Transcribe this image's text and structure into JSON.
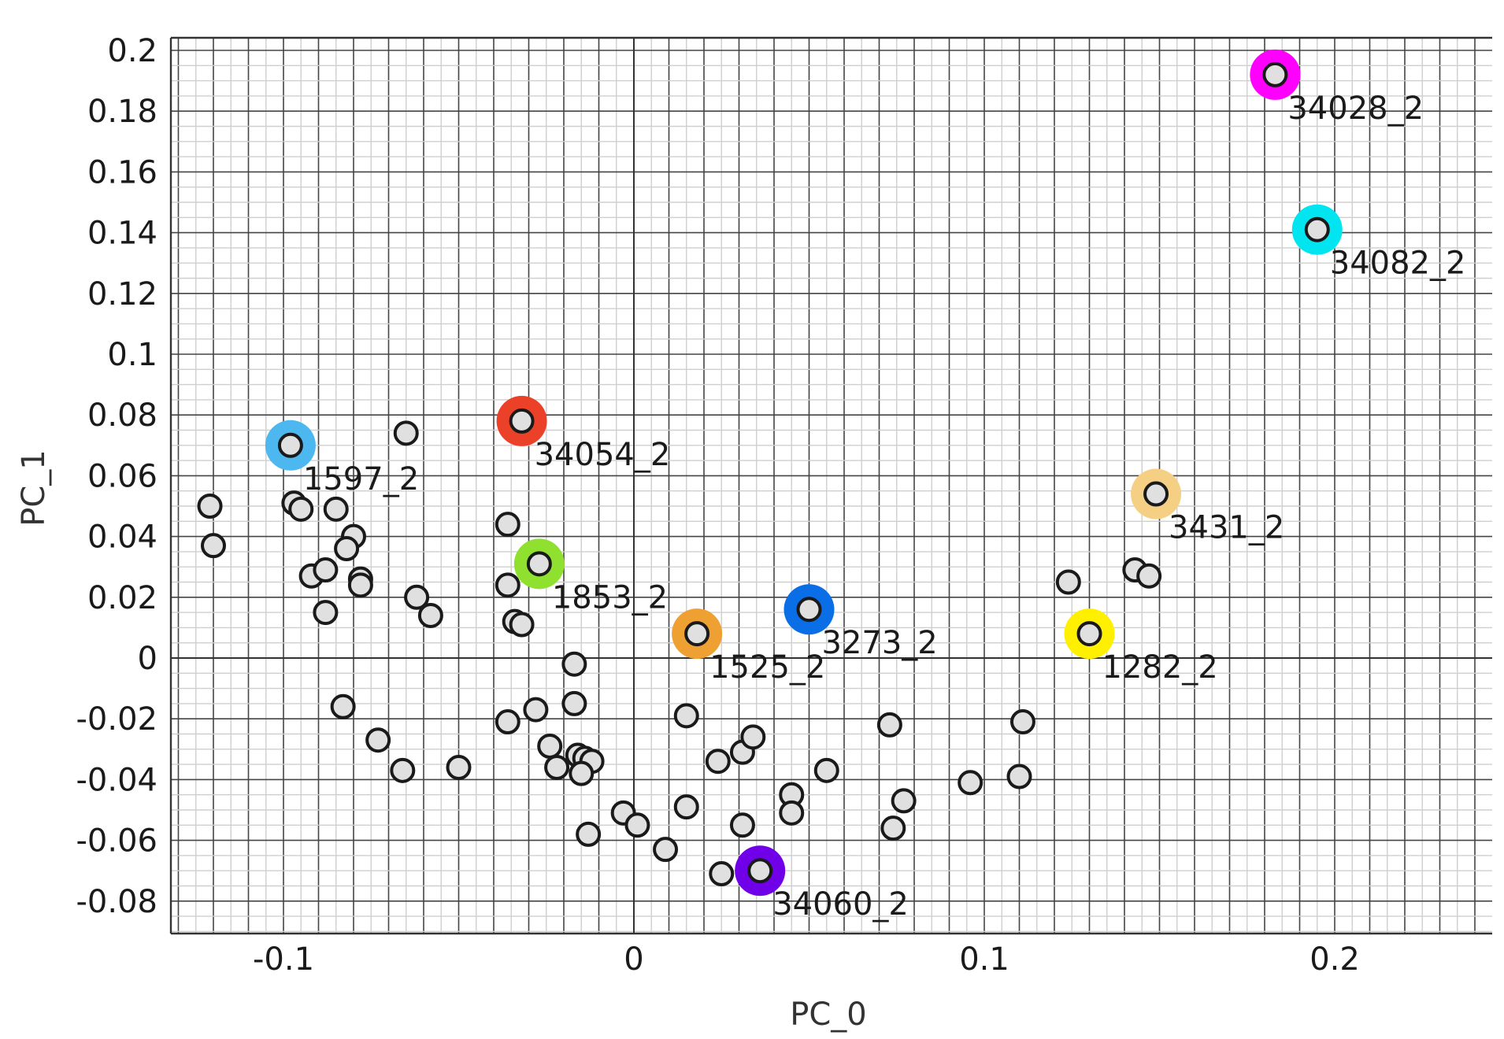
{
  "chart_data": {
    "type": "scatter",
    "title": "",
    "xlabel": "PC_0",
    "ylabel": "PC_1",
    "xlim": [
      -0.13,
      0.245
    ],
    "ylim": [
      -0.09,
      0.203
    ],
    "x_ticks": [
      -0.1,
      0,
      0.1,
      0.2
    ],
    "x_tick_labels": [
      "-0.1",
      "0",
      "0.1",
      "0.2"
    ],
    "y_ticks": [
      -0.08,
      -0.06,
      -0.04,
      -0.02,
      0,
      0.02,
      0.04,
      0.06,
      0.08,
      0.1,
      0.12,
      0.14,
      0.16,
      0.18,
      0.2
    ],
    "y_tick_labels": [
      "-0.08",
      "-0.06",
      "-0.04",
      "-0.02",
      "0",
      "0.02",
      "0.04",
      "0.06",
      "0.08",
      "0.1",
      "0.12",
      "0.14",
      "0.16",
      "0.18",
      "0.2"
    ],
    "grid": true,
    "highlighted_points": [
      {
        "label": "34028_2",
        "x": 0.183,
        "y": 0.192,
        "color": "#ff00ff"
      },
      {
        "label": "34082_2",
        "x": 0.195,
        "y": 0.141,
        "color": "#00e5f0"
      },
      {
        "label": "34054_2",
        "x": -0.032,
        "y": 0.078,
        "color": "#ec4129"
      },
      {
        "label": "1597_2",
        "x": -0.098,
        "y": 0.07,
        "color": "#4db8f0"
      },
      {
        "label": "3431_2",
        "x": 0.149,
        "y": 0.054,
        "color": "#f5d084"
      },
      {
        "label": "1853_2",
        "x": -0.027,
        "y": 0.031,
        "color": "#90e030"
      },
      {
        "label": "3273_2",
        "x": 0.05,
        "y": 0.016,
        "color": "#0a6ee6"
      },
      {
        "label": "1525_2",
        "x": 0.018,
        "y": 0.008,
        "color": "#eea132"
      },
      {
        "label": "1282_2",
        "x": 0.13,
        "y": 0.008,
        "color": "#fff000"
      },
      {
        "label": "34060_2",
        "x": 0.036,
        "y": -0.07,
        "color": "#7000e8"
      }
    ],
    "points": [
      {
        "x": -0.121,
        "y": 0.05
      },
      {
        "x": -0.12,
        "y": 0.037
      },
      {
        "x": -0.097,
        "y": 0.051
      },
      {
        "x": -0.095,
        "y": 0.049
      },
      {
        "x": -0.085,
        "y": 0.049
      },
      {
        "x": -0.08,
        "y": 0.04
      },
      {
        "x": -0.082,
        "y": 0.036
      },
      {
        "x": -0.092,
        "y": 0.027
      },
      {
        "x": -0.088,
        "y": 0.029
      },
      {
        "x": -0.078,
        "y": 0.026
      },
      {
        "x": -0.078,
        "y": 0.024
      },
      {
        "x": -0.088,
        "y": 0.015
      },
      {
        "x": -0.065,
        "y": 0.074
      },
      {
        "x": -0.062,
        "y": 0.02
      },
      {
        "x": -0.058,
        "y": 0.014
      },
      {
        "x": -0.036,
        "y": 0.044
      },
      {
        "x": -0.036,
        "y": 0.024
      },
      {
        "x": -0.034,
        "y": 0.012
      },
      {
        "x": -0.032,
        "y": 0.011
      },
      {
        "x": -0.017,
        "y": -0.002
      },
      {
        "x": -0.083,
        "y": -0.016
      },
      {
        "x": -0.073,
        "y": -0.027
      },
      {
        "x": -0.066,
        "y": -0.037
      },
      {
        "x": -0.05,
        "y": -0.036
      },
      {
        "x": -0.036,
        "y": -0.021
      },
      {
        "x": -0.028,
        "y": -0.017
      },
      {
        "x": -0.024,
        "y": -0.029
      },
      {
        "x": -0.022,
        "y": -0.036
      },
      {
        "x": -0.017,
        "y": -0.015
      },
      {
        "x": -0.016,
        "y": -0.032
      },
      {
        "x": -0.014,
        "y": -0.033
      },
      {
        "x": -0.012,
        "y": -0.034
      },
      {
        "x": -0.015,
        "y": -0.038
      },
      {
        "x": -0.013,
        "y": -0.058
      },
      {
        "x": -0.003,
        "y": -0.051
      },
      {
        "x": 0.001,
        "y": -0.055
      },
      {
        "x": 0.009,
        "y": -0.063
      },
      {
        "x": 0.015,
        "y": -0.049
      },
      {
        "x": 0.015,
        "y": -0.019
      },
      {
        "x": 0.024,
        "y": -0.034
      },
      {
        "x": 0.031,
        "y": -0.031
      },
      {
        "x": 0.034,
        "y": -0.026
      },
      {
        "x": 0.031,
        "y": -0.055
      },
      {
        "x": 0.025,
        "y": -0.071
      },
      {
        "x": 0.045,
        "y": -0.045
      },
      {
        "x": 0.045,
        "y": -0.051
      },
      {
        "x": 0.055,
        "y": -0.037
      },
      {
        "x": 0.073,
        "y": -0.022
      },
      {
        "x": 0.077,
        "y": -0.047
      },
      {
        "x": 0.074,
        "y": -0.056
      },
      {
        "x": 0.096,
        "y": -0.041
      },
      {
        "x": 0.11,
        "y": -0.039
      },
      {
        "x": 0.111,
        "y": -0.021
      },
      {
        "x": 0.124,
        "y": 0.025
      },
      {
        "x": 0.143,
        "y": 0.029
      },
      {
        "x": 0.147,
        "y": 0.027
      }
    ]
  }
}
